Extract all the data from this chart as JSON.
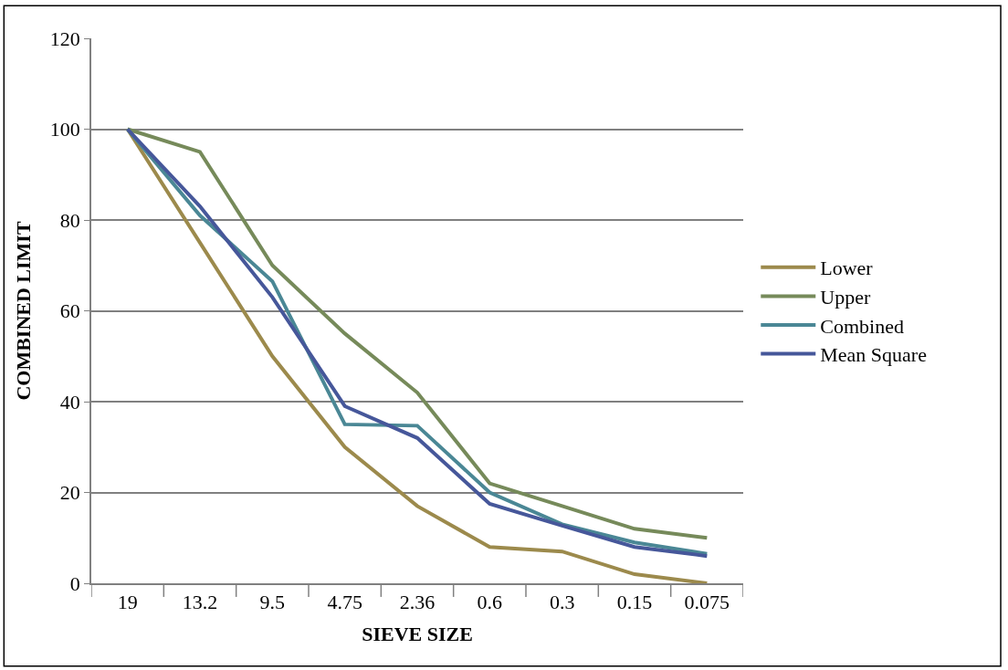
{
  "chart_data": {
    "type": "line",
    "xlabel": "SIEVE SIZE",
    "ylabel": "COMBINED LIMIT",
    "categories": [
      "19",
      "13.2",
      "9.5",
      "4.75",
      "2.36",
      "0.6",
      "0.3",
      "0.15",
      "0.075"
    ],
    "series": [
      {
        "name": "Lower",
        "color": "#9c8a4c",
        "values": [
          100,
          75,
          50,
          30,
          17,
          8,
          7,
          2,
          0
        ]
      },
      {
        "name": "Upper",
        "color": "#768a5a",
        "values": [
          100,
          95,
          70,
          55,
          42,
          22,
          17,
          12,
          10
        ]
      },
      {
        "name": "Combined",
        "color": "#4a8795",
        "values": [
          100,
          81,
          66.5,
          35,
          34.7,
          20,
          13,
          9,
          6.5
        ]
      },
      {
        "name": "Mean Square",
        "color": "#46579a",
        "values": [
          100,
          83,
          63,
          39,
          32,
          17.5,
          12.7,
          8,
          6
        ]
      }
    ],
    "ylim": [
      0,
      120
    ],
    "yticks": [
      0,
      20,
      40,
      60,
      80,
      100,
      120
    ],
    "grid": "y",
    "legend": "right",
    "marker": "none",
    "line_style": "solid"
  }
}
